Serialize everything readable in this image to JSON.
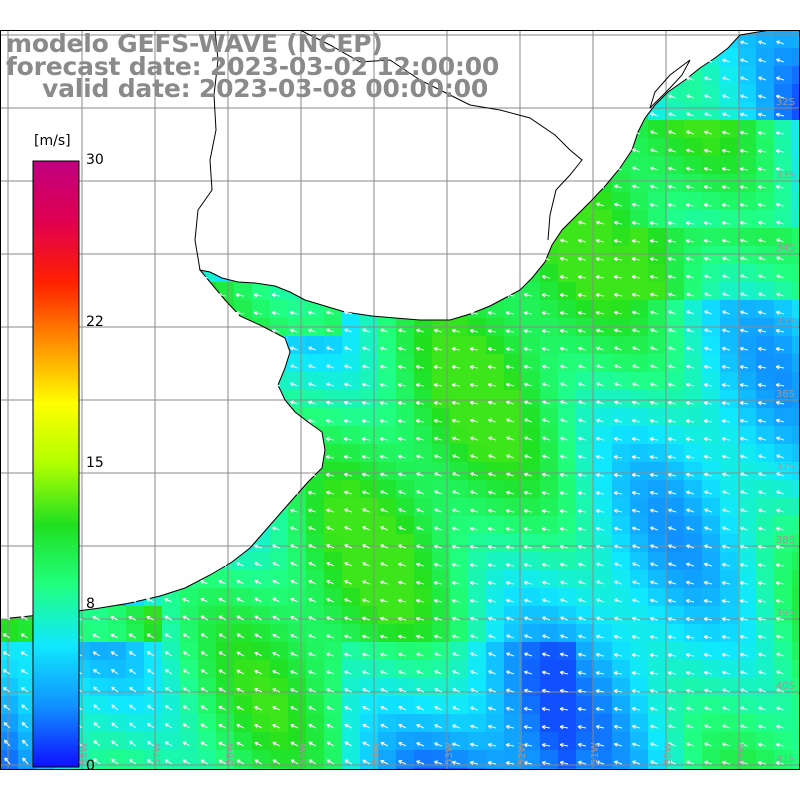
{
  "title": {
    "model": "modelo GEFS-WAVE (NCEP)",
    "forecast": "forecast date: 2023-03-02 12:00:00",
    "valid": "valid date: 2023-03-08 00:00:00"
  },
  "colorbar": {
    "unit": "[m/s]",
    "min": 0,
    "max": 30,
    "ticks": [
      {
        "value": 30,
        "label": "30"
      },
      {
        "value": 22,
        "label": "22"
      },
      {
        "value": 15,
        "label": "15"
      },
      {
        "value": 8,
        "label": "8"
      },
      {
        "value": 0,
        "label": "0"
      }
    ],
    "stops": [
      "#1010ff",
      "#1090ff",
      "#10e8ff",
      "#20ff80",
      "#20e020",
      "#b0ff00",
      "#ffff00",
      "#ff9000",
      "#ff2000",
      "#e00050",
      "#c00080"
    ]
  },
  "colors": {
    "land": "#ffffff",
    "coast": "#000000",
    "grid": "#888888",
    "arrow": "#ffffff"
  },
  "lat_labels": [
    "32S",
    "33S",
    "34S",
    "35S",
    "36S",
    "37S",
    "38S",
    "39S",
    "40S",
    "41S"
  ],
  "lon_labels": [
    "58W",
    "57W",
    "56W",
    "55W",
    "54W",
    "53W",
    "52W",
    "51W",
    "50W",
    "49W"
  ]
}
